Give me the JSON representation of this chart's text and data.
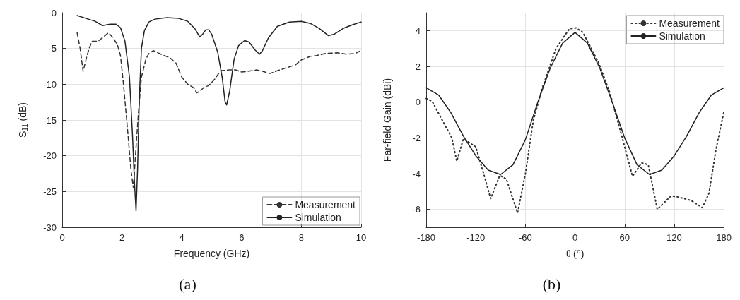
{
  "chart_data": [
    {
      "type": "line",
      "xlabel": "Frequency (GHz)",
      "ylabel": "S$_{11}$ (dB)",
      "xlim": [
        0,
        10
      ],
      "xticks": [
        0,
        2,
        4,
        6,
        8,
        10
      ],
      "ylim": [
        -30,
        0
      ],
      "yticks": [
        -30,
        -25,
        -20,
        -15,
        -10,
        -5,
        0
      ],
      "grid": true,
      "legend": "bottom right",
      "marker": "none",
      "annotations": [
        "(a)"
      ],
      "series": [
        {
          "name": "Measurement",
          "color": "#333333",
          "line_style": "dashed",
          "x": [
            0.5,
            0.6,
            0.7,
            0.8,
            0.9,
            1.0,
            1.2,
            1.4,
            1.55,
            1.7,
            1.85,
            1.95,
            2.05,
            2.2,
            2.3,
            2.38,
            2.45,
            2.55,
            2.65,
            2.8,
            2.9,
            3.05,
            3.3,
            3.6,
            3.8,
            4.0,
            4.2,
            4.4,
            4.5,
            4.6,
            4.75,
            4.9,
            5.1,
            5.3,
            5.6,
            5.8,
            6.0,
            6.2,
            6.5,
            6.7,
            6.95,
            7.2,
            7.5,
            7.8,
            8.0,
            8.3,
            8.5,
            8.8,
            9.2,
            9.5,
            9.8,
            10
          ],
          "values": [
            -2.8,
            -5,
            -8.2,
            -6.5,
            -5,
            -4,
            -4,
            -3.3,
            -2.8,
            -3.5,
            -4.5,
            -6,
            -10,
            -17,
            -22,
            -24.5,
            -20,
            -14,
            -9,
            -6.5,
            -5.7,
            -5.3,
            -5.8,
            -6.3,
            -7,
            -9,
            -10,
            -10.5,
            -11.2,
            -11,
            -10.4,
            -10.2,
            -9.3,
            -8.1,
            -8,
            -8,
            -8.3,
            -8.2,
            -8,
            -8.2,
            -8.5,
            -8.1,
            -7.7,
            -7.3,
            -6.6,
            -6.1,
            -6,
            -5.7,
            -5.6,
            -5.8,
            -5.7,
            -5.3
          ]
        },
        {
          "name": "Simulation",
          "color": "#222222",
          "line_style": "solid",
          "x": [
            0.5,
            0.8,
            1.1,
            1.35,
            1.6,
            1.8,
            1.95,
            2.1,
            2.25,
            2.35,
            2.42,
            2.47,
            2.52,
            2.58,
            2.65,
            2.75,
            2.9,
            3.1,
            3.5,
            3.9,
            4.2,
            4.45,
            4.6,
            4.7,
            4.8,
            4.9,
            5.0,
            5.2,
            5.35,
            5.45,
            5.5,
            5.6,
            5.75,
            5.9,
            6.1,
            6.25,
            6.45,
            6.6,
            6.7,
            6.9,
            7.2,
            7.6,
            8.0,
            8.3,
            8.6,
            8.9,
            9.1,
            9.4,
            9.7,
            10
          ],
          "values": [
            -0.4,
            -0.8,
            -1.2,
            -1.8,
            -1.6,
            -1.6,
            -2.1,
            -4,
            -9,
            -17,
            -24,
            -27.7,
            -22,
            -12,
            -5,
            -2.5,
            -1.3,
            -0.9,
            -0.7,
            -0.8,
            -1.2,
            -2.3,
            -3.4,
            -3,
            -2.4,
            -2.4,
            -3,
            -5.5,
            -9,
            -12.5,
            -12.9,
            -11,
            -6.5,
            -4.6,
            -3.9,
            -4.1,
            -5.2,
            -5.8,
            -5.3,
            -3.5,
            -1.9,
            -1.3,
            -1.2,
            -1.5,
            -2.2,
            -3.2,
            -3,
            -2.2,
            -1.7,
            -1.3
          ]
        }
      ]
    },
    {
      "type": "line",
      "xlabel": "θ (°)",
      "ylabel": "Far-field Gain (dBi)",
      "xlim": [
        -180,
        180
      ],
      "xticks": [
        -180,
        -120,
        -60,
        0,
        60,
        120,
        180
      ],
      "ylim": [
        -7,
        5
      ],
      "yticks": [
        -6,
        -4,
        -2,
        0,
        2,
        4
      ],
      "grid": true,
      "legend": "top right",
      "marker": "none",
      "annotations": [
        "(b)"
      ],
      "series": [
        {
          "name": "Measurement",
          "color": "#333333",
          "line_style": "dotted",
          "x": [
            -180,
            -173,
            -149,
            -143,
            -135,
            -120,
            -110.5,
            -102,
            -91,
            -83,
            -69.5,
            -60,
            -50.5,
            -39.5,
            -23,
            -6.8,
            1.4,
            9.5,
            28.6,
            42,
            56,
            69.5,
            80.5,
            88.6,
            99.5,
            116,
            124,
            140.5,
            154,
            162,
            170.5,
            180
          ],
          "values": [
            0.2,
            0.06,
            -2.0,
            -3.3,
            -2.05,
            -2.5,
            -4.0,
            -5.4,
            -4.1,
            -4.3,
            -6.2,
            -4.0,
            -1.05,
            0.8,
            3.0,
            4.1,
            4.15,
            3.9,
            2.2,
            0.55,
            -1.8,
            -4.15,
            -3.4,
            -3.5,
            -6.0,
            -5.25,
            -5.3,
            -5.5,
            -5.9,
            -5.1,
            -2.65,
            -0.55
          ]
        },
        {
          "name": "Simulation",
          "color": "#222222",
          "line_style": "solid",
          "x": [
            -180,
            -165,
            -150,
            -135,
            -120,
            -105,
            -90,
            -75,
            -60,
            -45,
            -30,
            -15,
            0,
            15,
            30,
            45,
            60,
            75,
            90,
            105,
            120,
            135,
            150,
            165,
            180
          ],
          "values": [
            0.8,
            0.4,
            -0.6,
            -1.9,
            -3.0,
            -3.8,
            -4.05,
            -3.5,
            -2.1,
            0,
            1.9,
            3.3,
            3.9,
            3.3,
            1.9,
            0,
            -2.0,
            -3.5,
            -4.05,
            -3.8,
            -3.0,
            -1.9,
            -0.6,
            0.4,
            0.8
          ]
        }
      ]
    }
  ]
}
